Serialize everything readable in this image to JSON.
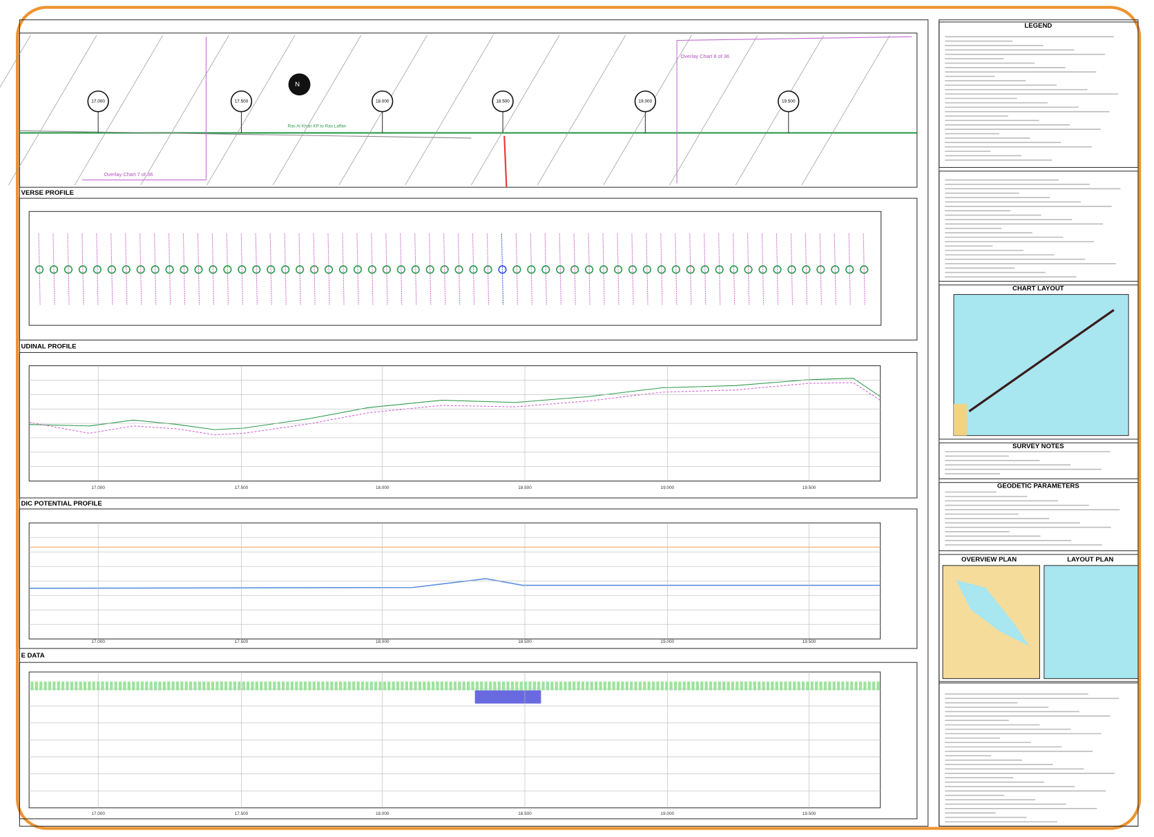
{
  "plan": {
    "markers": [
      "17.000",
      "17.500",
      "18.000",
      "18.500",
      "19.000",
      "19.500"
    ],
    "overlays": [
      "Overlay Chart 8 of 36",
      "Overlay Chart 7 of 36"
    ],
    "pipeline": "Ras Al Khair KP to Ras Laffan"
  },
  "sections": {
    "transverse": "VERSE PROFILE",
    "longitudinal": "UDINAL PROFILE",
    "cp": "DIC POTENTIAL PROFILE",
    "pipe": "E DATA"
  },
  "profile_x_labels": [
    "17.000",
    "17.500",
    "18.000",
    "18.500",
    "19.000",
    "19.500"
  ],
  "sidebar": {
    "legend": "LEGEND",
    "chart_layout": "CHART LAYOUT",
    "survey_notes": "SURVEY NOTES",
    "geodetic": "GEODETIC PARAMETERS",
    "overview": "OVERVIEW PLAN",
    "layout": "LAYOUT PLAN"
  }
}
